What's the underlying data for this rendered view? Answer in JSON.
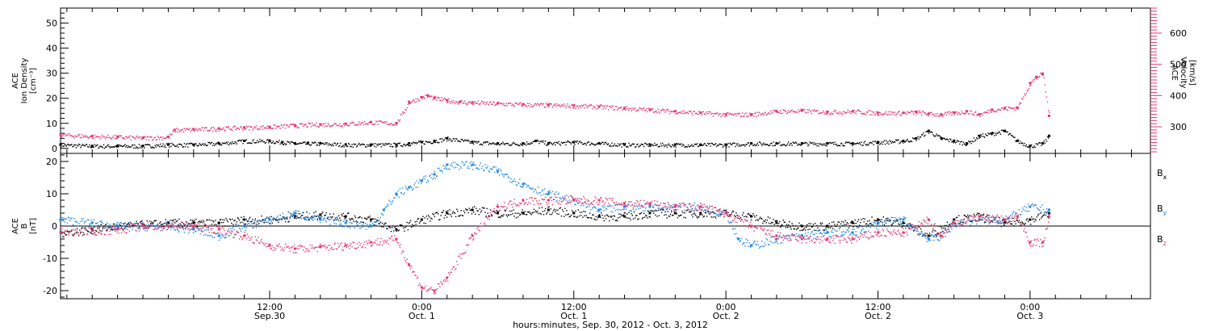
{
  "colors": {
    "density": "#000000",
    "velocity": "#e8386e",
    "bx": "#000000",
    "by": "#1e88e5",
    "bz": "#e8386e",
    "axis": "#000000",
    "velocity_axis": "#e8386e"
  },
  "time_axis": {
    "label": "hours:minutes, Sep. 30, 2012 - Oct.  3, 2012",
    "range_hours": [
      -16.5,
      69.5
    ],
    "major_ticks": [
      {
        "t": 0,
        "time": "12:00",
        "date": "Sep.30"
      },
      {
        "t": 12,
        "time": "0:00",
        "date": "Oct. 1"
      },
      {
        "t": 24,
        "time": "12:00",
        "date": "Oct. 1"
      },
      {
        "t": 36,
        "time": "0:00",
        "date": "Oct. 2"
      },
      {
        "t": 48,
        "time": "12:00",
        "date": "Oct. 2"
      },
      {
        "t": 60,
        "time": "0:00",
        "date": "Oct. 3"
      }
    ],
    "minor_step_hours": 2
  },
  "chart_data": [
    {
      "type": "scatter",
      "title": "",
      "ylabel": [
        "ACE",
        "Ion Density",
        "[cm⁻³]"
      ],
      "ylim": [
        -2,
        56
      ],
      "yticks": [
        0,
        10,
        20,
        30,
        40,
        50
      ],
      "ylabel_right": [
        "ACE",
        "Velocity",
        "[km/s]"
      ],
      "ylim_right": [
        215,
        680
      ],
      "yticks_right": [
        300,
        400,
        500,
        600
      ],
      "series": [
        {
          "key": "density",
          "x": [
            -16.5,
            -14,
            -12,
            -10,
            -8,
            -6,
            -4,
            -2,
            0,
            1,
            2,
            3,
            4,
            6,
            8,
            10,
            11,
            12,
            13,
            14,
            16,
            18,
            20,
            21,
            22,
            24,
            26,
            28,
            30,
            32,
            34,
            36,
            38,
            40,
            42,
            44,
            46,
            48,
            50,
            51,
            52,
            53,
            54,
            55,
            56,
            57,
            58,
            59,
            60,
            61,
            61.5
          ],
          "y": [
            1.5,
            1,
            1,
            1,
            1.5,
            1.5,
            2,
            3,
            3,
            2.5,
            2,
            2,
            2,
            1.5,
            1.5,
            1.5,
            2,
            2.5,
            3,
            4,
            2.5,
            2,
            2,
            3,
            2,
            2.5,
            2,
            1.5,
            1.5,
            1.5,
            1.5,
            1.5,
            2,
            2,
            2,
            2,
            2,
            2.5,
            3,
            4,
            7,
            4,
            3,
            2,
            5,
            6,
            7,
            3,
            1,
            2,
            5
          ]
        },
        {
          "key": "velocity",
          "x": [
            -16.5,
            -14,
            -12,
            -10,
            -8,
            -7.5,
            -6,
            -4,
            -2,
            0,
            2,
            4,
            6,
            8,
            10,
            11,
            12,
            12.5,
            13,
            14,
            15,
            16,
            18,
            20,
            22,
            24,
            26,
            28,
            30,
            32,
            34,
            36,
            38,
            40,
            42,
            44,
            46,
            48,
            50,
            51,
            52,
            53,
            54,
            55,
            56,
            57,
            58,
            59,
            60,
            60.5,
            61,
            61.5
          ],
          "y": [
            275,
            270,
            268,
            265,
            268,
            290,
            292,
            295,
            298,
            300,
            305,
            308,
            310,
            315,
            312,
            380,
            395,
            400,
            392,
            385,
            380,
            378,
            375,
            372,
            370,
            368,
            365,
            360,
            355,
            350,
            345,
            340,
            340,
            350,
            352,
            348,
            350,
            345,
            345,
            348,
            342,
            340,
            345,
            350,
            340,
            355,
            360,
            362,
            440,
            460,
            470,
            335
          ]
        }
      ]
    },
    {
      "type": "scatter",
      "title": "",
      "ylabel": [
        "ACE",
        "B",
        "[nT]"
      ],
      "ylim": [
        -22.5,
        22.5
      ],
      "yticks": [
        -20,
        -10,
        0,
        10,
        20
      ],
      "zero_line": true,
      "series": [
        {
          "key": "bx",
          "name": "Bx",
          "x": [
            -16.5,
            -14,
            -12,
            -10,
            -8,
            -6,
            -4,
            -2,
            0,
            2,
            4,
            6,
            8,
            10,
            12,
            14,
            16,
            18,
            20,
            22,
            24,
            26,
            28,
            30,
            32,
            34,
            36,
            38,
            40,
            42,
            44,
            46,
            48,
            50,
            52,
            54,
            56,
            58,
            60,
            61.5
          ],
          "y": [
            -2,
            -1,
            0,
            0.5,
            1,
            1,
            1,
            2,
            2,
            3,
            3.5,
            3,
            2,
            -1,
            2,
            4,
            5,
            4,
            4,
            5,
            4,
            3,
            3,
            4,
            4,
            4,
            4,
            3,
            1,
            0,
            0,
            1,
            2,
            1,
            -3,
            2,
            3,
            1,
            2,
            4
          ]
        },
        {
          "key": "by",
          "name": "By",
          "x": [
            -16.5,
            -14,
            -12,
            -10,
            -8,
            -6,
            -4,
            -2,
            0,
            2,
            4,
            6,
            8,
            9,
            10,
            11,
            12,
            13,
            14,
            16,
            18,
            20,
            22,
            24,
            26,
            28,
            30,
            32,
            34,
            36,
            37,
            38,
            40,
            42,
            44,
            46,
            48,
            50,
            52,
            53,
            54,
            56,
            58,
            60,
            61.5
          ],
          "y": [
            2,
            1,
            0,
            0,
            0,
            -1,
            -3,
            0,
            2,
            4,
            2,
            1,
            0,
            5,
            10,
            12,
            14,
            16,
            19,
            19,
            17,
            13,
            10,
            8,
            5,
            6,
            6,
            6,
            6,
            4,
            -4,
            -6,
            -4,
            -3,
            -2,
            -2,
            1,
            2,
            -4,
            -3,
            1,
            2,
            2,
            6,
            5
          ]
        },
        {
          "key": "bz",
          "name": "Bz",
          "x": [
            -16.5,
            -14,
            -12,
            -10,
            -8,
            -6,
            -4,
            -2,
            0,
            2,
            4,
            6,
            8,
            10,
            11,
            12,
            13,
            14,
            16,
            18,
            20,
            22,
            24,
            26,
            28,
            30,
            32,
            34,
            36,
            38,
            40,
            42,
            44,
            46,
            48,
            50,
            52,
            53,
            54,
            56,
            58,
            59,
            60,
            61,
            61.5
          ],
          "y": [
            -2,
            -1.5,
            -1,
            0,
            0,
            0,
            -1,
            -3,
            -6,
            -7,
            -6.5,
            -6,
            -5,
            -4,
            -12,
            -19,
            -20,
            -16,
            -3,
            6,
            8,
            8,
            8,
            8,
            7,
            7,
            6,
            6,
            4,
            0,
            -3,
            -4,
            -4,
            -4,
            -2,
            -2,
            2,
            -3,
            1,
            3,
            2,
            3,
            -5,
            -5,
            3
          ]
        }
      ]
    }
  ],
  "legend": {
    "bx": {
      "base": "B",
      "sub": "x"
    },
    "by": {
      "base": "B",
      "sub": "y"
    },
    "bz": {
      "base": "B",
      "sub": "z"
    }
  }
}
